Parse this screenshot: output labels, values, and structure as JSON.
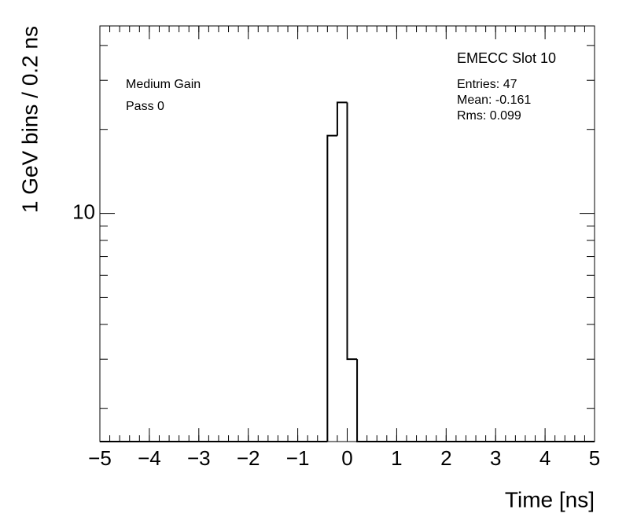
{
  "chart_data": {
    "type": "histogram",
    "xlabel": "Time [ns]",
    "ylabel": "1 GeV bins / 0.2 ns",
    "annotations": [
      "Medium Gain",
      "Pass 0"
    ],
    "stats": {
      "title": "EMECC Slot 10",
      "lines": [
        "Entries: 47",
        "Mean: -0.161",
        "Rms: 0.099"
      ]
    },
    "bins": [
      -5,
      -4.8,
      -4.6,
      -4.4,
      -4.2,
      -4,
      -3.8,
      -3.6,
      -3.4,
      -3.2,
      -3,
      -2.8,
      -2.6,
      -2.4,
      -2.2,
      -2,
      -1.8,
      -1.6,
      -1.4,
      -1.2,
      -1,
      -0.8,
      -0.6,
      -0.4,
      -0.2,
      0,
      0.2,
      0.4,
      0.6,
      0.8,
      1,
      1.2,
      1.4,
      1.6,
      1.8,
      2,
      2.2,
      2.4,
      2.6,
      2.8,
      3,
      3.2,
      3.4,
      3.6,
      3.8,
      4,
      4.2,
      4.4,
      4.6,
      4.8,
      5
    ],
    "counts": [
      0,
      0,
      0,
      0,
      0,
      0,
      0,
      0,
      0,
      0,
      0,
      0,
      0,
      0,
      0,
      0,
      0,
      0,
      0,
      0,
      0,
      0,
      0,
      19,
      25,
      3,
      0,
      0,
      0,
      0,
      0,
      0,
      0,
      0,
      0,
      0,
      0,
      0,
      0,
      0,
      0,
      0,
      0,
      0,
      0,
      0,
      0,
      0,
      0,
      0
    ],
    "color": "#000000",
    "xlim": [
      -5,
      5
    ],
    "xticks": [
      {
        "value": -5,
        "label": "−5"
      },
      {
        "value": -4,
        "label": "−4"
      },
      {
        "value": -3,
        "label": "−3"
      },
      {
        "value": -2,
        "label": "−2"
      },
      {
        "value": -1,
        "label": "−1"
      },
      0,
      1,
      2,
      3,
      4,
      5
    ],
    "ylim": [
      1.52,
      47
    ],
    "yscale": "log",
    "yticks": [
      10
    ],
    "yminorticks": [
      2,
      3,
      4,
      5,
      6,
      7,
      8,
      9,
      20,
      30,
      40
    ]
  }
}
